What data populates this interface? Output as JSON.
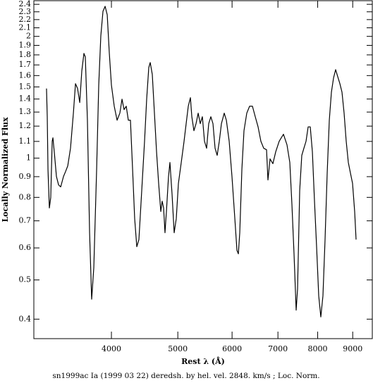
{
  "chart_data": {
    "type": "line",
    "x_label": "Rest λ (Å)",
    "y_label": "Locally Normalized Flux",
    "caption": "sn1999ac Ia (1999 03 22) deredsh. by hel. vel.  2848. km/s ;  Loc. Norm.",
    "x_scale": "log",
    "y_scale": "log",
    "grid": false,
    "xlim": [
      3082,
      9612
    ],
    "ylim": [
      0.358,
      2.45
    ],
    "xticks": [
      4000,
      5000,
      6000,
      7000,
      8000,
      9000
    ],
    "yticks": [
      0.4,
      0.5,
      0.6,
      0.7,
      0.8,
      0.9,
      1,
      1.1,
      1.2,
      1.3,
      1.4,
      1.5,
      1.6,
      1.7,
      1.8,
      1.9,
      2,
      2.1,
      2.2,
      2.3,
      2.4
    ],
    "series": [
      {
        "color": "#000000",
        "x": [
          3216,
          3224,
          3232,
          3247,
          3262,
          3278,
          3286,
          3301,
          3325,
          3349,
          3373,
          3405,
          3429,
          3454,
          3486,
          3520,
          3545,
          3570,
          3596,
          3621,
          3647,
          3664,
          3690,
          3717,
          3743,
          3770,
          3806,
          3833,
          3860,
          3888,
          3916,
          3944,
          3972,
          4000,
          4038,
          4077,
          4115,
          4145,
          4174,
          4204,
          4234,
          4264,
          4295,
          4325,
          4356,
          4387,
          4429,
          4471,
          4503,
          4535,
          4557,
          4589,
          4622,
          4655,
          4688,
          4722,
          4744,
          4767,
          4789,
          4812,
          4846,
          4869,
          4904,
          4939,
          4974,
          5010,
          5058,
          5106,
          5142,
          5179,
          5216,
          5241,
          5278,
          5316,
          5354,
          5392,
          5430,
          5469,
          5508,
          5547,
          5587,
          5627,
          5667,
          5707,
          5748,
          5789,
          5844,
          5886,
          5942,
          5998,
          6056,
          6099,
          6128,
          6157,
          6201,
          6245,
          6304,
          6364,
          6425,
          6486,
          6548,
          6610,
          6673,
          6737,
          6769,
          6817,
          6882,
          6948,
          7030,
          7131,
          7216,
          7285,
          7337,
          7389,
          7442,
          7477,
          7531,
          7584,
          7638,
          7693,
          7748,
          7803,
          7859,
          7915,
          7971,
          8028,
          8085,
          8143,
          8201,
          8260,
          8319,
          8378,
          8438,
          8498,
          8558,
          8620,
          8681,
          8743,
          8805,
          8868,
          8931,
          8995,
          9059,
          9102
        ],
        "values": [
          1.486,
          1.266,
          0.938,
          0.753,
          0.799,
          1.101,
          1.123,
          1.037,
          0.901,
          0.859,
          0.849,
          0.901,
          0.927,
          0.957,
          1.058,
          1.292,
          1.528,
          1.486,
          1.372,
          1.642,
          1.815,
          1.779,
          1.241,
          0.654,
          0.448,
          0.536,
          0.938,
          1.516,
          2.006,
          2.307,
          2.373,
          2.261,
          1.815,
          1.516,
          1.344,
          1.241,
          1.292,
          1.399,
          1.318,
          1.344,
          1.241,
          1.241,
          0.938,
          0.709,
          0.604,
          0.629,
          0.832,
          1.101,
          1.399,
          1.675,
          1.723,
          1.61,
          1.292,
          1.037,
          0.866,
          0.738,
          0.783,
          0.753,
          0.654,
          0.738,
          0.901,
          0.976,
          0.815,
          0.654,
          0.709,
          0.866,
          0.976,
          1.101,
          1.217,
          1.344,
          1.411,
          1.266,
          1.169,
          1.217,
          1.292,
          1.217,
          1.266,
          1.101,
          1.058,
          1.217,
          1.266,
          1.217,
          1.058,
          1.016,
          1.101,
          1.217,
          1.292,
          1.241,
          1.101,
          0.901,
          0.709,
          0.592,
          0.58,
          0.654,
          0.938,
          1.169,
          1.292,
          1.344,
          1.344,
          1.266,
          1.195,
          1.101,
          1.058,
          1.049,
          0.883,
          0.996,
          0.969,
          1.037,
          1.101,
          1.146,
          1.079,
          0.976,
          0.768,
          0.58,
          0.421,
          0.475,
          0.832,
          1.016,
          1.058,
          1.101,
          1.195,
          1.195,
          1.037,
          0.783,
          0.604,
          0.457,
          0.405,
          0.457,
          0.629,
          0.919,
          1.241,
          1.456,
          1.578,
          1.655,
          1.59,
          1.528,
          1.456,
          1.292,
          1.101,
          0.976,
          0.919,
          0.866,
          0.738,
          0.629
        ]
      }
    ]
  }
}
